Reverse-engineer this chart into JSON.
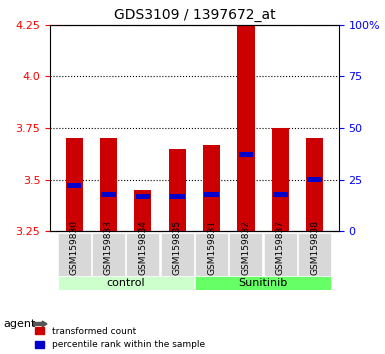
{
  "title": "GDS3109 / 1397672_at",
  "samples": [
    "GSM159830",
    "GSM159833",
    "GSM159834",
    "GSM159835",
    "GSM159831",
    "GSM159832",
    "GSM159837",
    "GSM159838"
  ],
  "red_values": [
    3.7,
    3.7,
    3.45,
    3.65,
    3.67,
    4.27,
    3.75,
    3.7
  ],
  "blue_values": [
    3.47,
    3.43,
    3.42,
    3.42,
    3.43,
    3.62,
    3.43,
    3.5
  ],
  "bar_bottom": 3.25,
  "ylim": [
    3.25,
    4.25
  ],
  "y2lim": [
    0,
    100
  ],
  "yticks": [
    3.25,
    3.5,
    3.75,
    4.0,
    4.25
  ],
  "y2ticks": [
    0,
    25,
    50,
    75,
    100
  ],
  "y2ticklabels": [
    "0",
    "25",
    "50",
    "75",
    "100%"
  ],
  "groups": [
    {
      "label": "control",
      "indices": [
        0,
        1,
        2,
        3
      ],
      "color": "#ccffcc"
    },
    {
      "label": "Sunitinib",
      "indices": [
        4,
        5,
        6,
        7
      ],
      "color": "#66ff66"
    }
  ],
  "agent_label": "agent",
  "red_color": "#cc0000",
  "blue_color": "#0000cc",
  "bar_width": 0.5,
  "grid_color": "black",
  "bg_color": "#f0f0f0",
  "legend_red": "transformed count",
  "legend_blue": "percentile rank within the sample"
}
